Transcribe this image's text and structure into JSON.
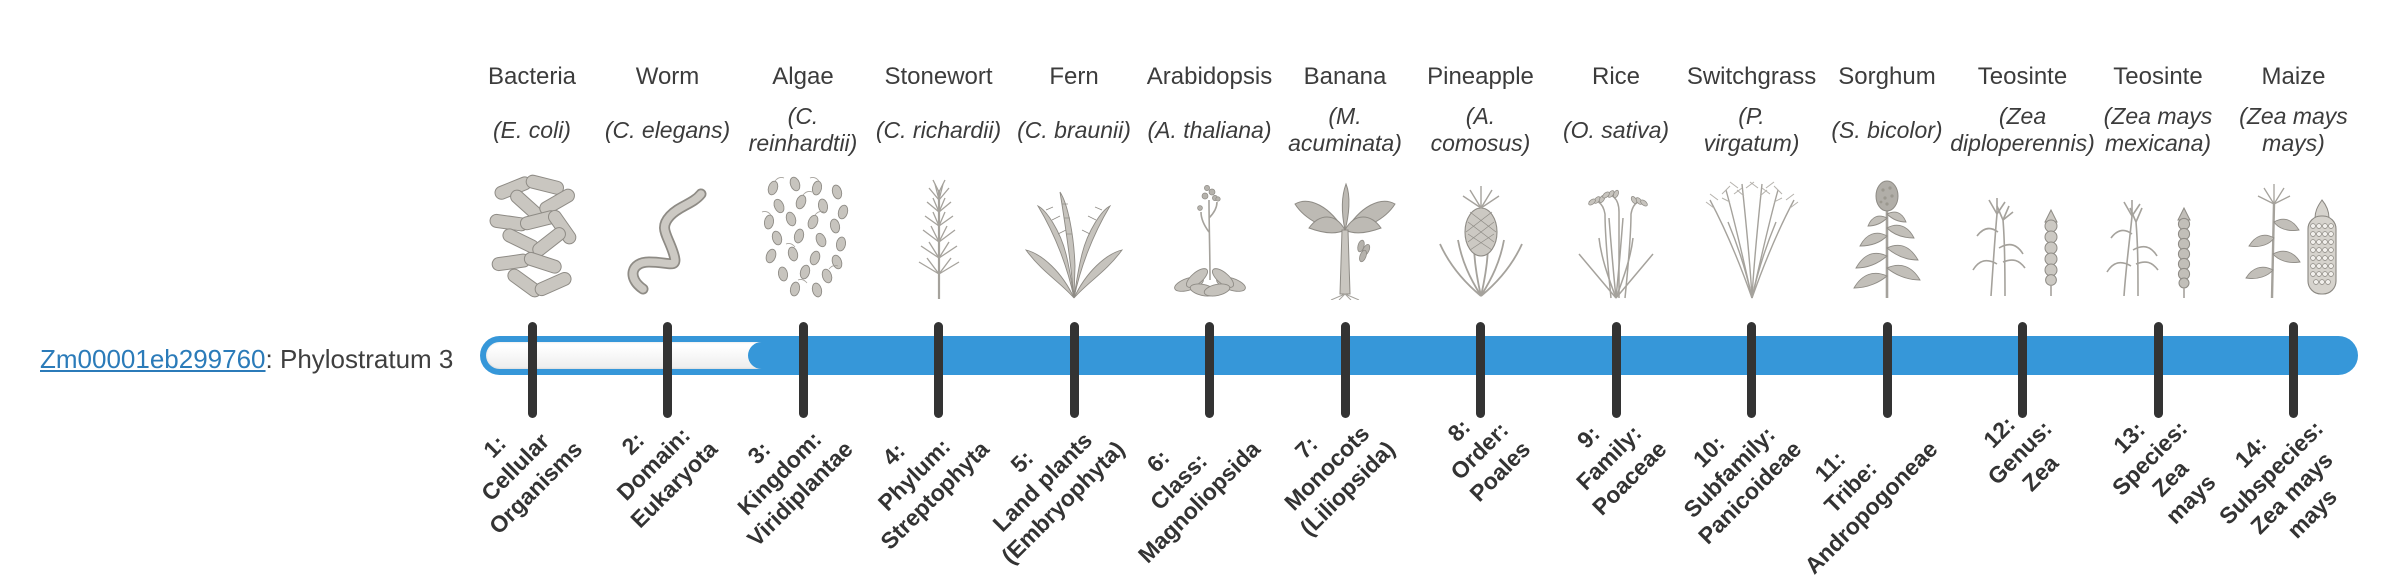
{
  "gene": {
    "id": "Zm00001eb299760",
    "suffix": ": Phylostratum 3",
    "phylostratum": 3
  },
  "colors": {
    "bar_fill": "#3697d9",
    "bar_empty_track": "#f5f5f5",
    "tick": "#333333",
    "text": "#3c3c3c",
    "link": "#2b7bb9",
    "illustration_gray": "#c9c6c0"
  },
  "chart_data": {
    "type": "bar",
    "orientation": "horizontal",
    "title": "Zm00001eb299760: Phylostratum 3",
    "gene_id": "Zm00001eb299760",
    "gene_phylostratum": 3,
    "axis_description": "Phylostrata 1-14 timeline; track empty for strata 1-2, filled blue from stratum 3 (gene origin) through stratum 14",
    "empty_range": [
      1,
      2
    ],
    "filled_range": [
      3,
      14
    ],
    "categories": [
      "1: Cellular Organisms",
      "2: Domain: Eukaryota",
      "3: Kingdom: Viridiplantae",
      "4: Phylum: Streptophyta",
      "5: Land plants (Embryophyta)",
      "6: Class: Magnoliopsida",
      "7: Monocots (Liliopsida)",
      "8: Order: Poales",
      "9: Family: Poaceae",
      "10: Subfamily: Panicoideae",
      "11: Tribe: Andropogoneae",
      "12: Genus: Zea",
      "13: Species: Zea mays",
      "14: Subspecies: Zea mays mays"
    ],
    "species": [
      {
        "common": "Bacteria",
        "scientific": "E. coli"
      },
      {
        "common": "Worm",
        "scientific": "C. elegans"
      },
      {
        "common": "Algae",
        "scientific": "C. reinhardtii"
      },
      {
        "common": "Stonewort",
        "scientific": "C. richardii"
      },
      {
        "common": "Fern",
        "scientific": "C. braunii"
      },
      {
        "common": "Arabidopsis",
        "scientific": "A. thaliana"
      },
      {
        "common": "Banana",
        "scientific": "M. acuminata"
      },
      {
        "common": "Pineapple",
        "scientific": "A. comosus"
      },
      {
        "common": "Rice",
        "scientific": "O. sativa"
      },
      {
        "common": "Switchgrass",
        "scientific": "P. virgatum"
      },
      {
        "common": "Sorghum",
        "scientific": "S. bicolor"
      },
      {
        "common": "Teosinte",
        "scientific": "Zea diploperennis"
      },
      {
        "common": "Teosinte",
        "scientific": "Zea mays mexicana"
      },
      {
        "common": "Maize",
        "scientific": "Zea mays mays"
      }
    ]
  },
  "strata": [
    {
      "num": "1",
      "label": "1:\nCellular\nOrganisms",
      "species": "Bacteria",
      "sci": "(E. coli)",
      "icon": "bacteria"
    },
    {
      "num": "2",
      "label": "2:\nDomain:\nEukaryota",
      "species": "Worm",
      "sci": "(C. elegans)",
      "icon": "worm"
    },
    {
      "num": "3",
      "label": "3:\nKingdom:\nViridiplantae",
      "species": "Algae",
      "sci": "(C.\nreinhardtii)",
      "icon": "algae"
    },
    {
      "num": "4",
      "label": "4:\nPhylum:\nStreptophyta",
      "species": "Stonewort",
      "sci": "(C. richardii)",
      "icon": "stonewort"
    },
    {
      "num": "5",
      "label": "5:\nLand plants\n(Embryophyta)",
      "species": "Fern",
      "sci": "(C. braunii)",
      "icon": "fern"
    },
    {
      "num": "6",
      "label": "6:\nClass:\nMagnoliopsida",
      "species": "Arabidopsis",
      "sci": "(A. thaliana)",
      "icon": "arabidopsis"
    },
    {
      "num": "7",
      "label": "7:\nMonocots\n(Liliopsida)",
      "species": "Banana",
      "sci": "(M.\nacuminata)",
      "icon": "banana"
    },
    {
      "num": "8",
      "label": "8:\nOrder:\nPoales",
      "species": "Pineapple",
      "sci": "(A.\ncomosus)",
      "icon": "pineapple"
    },
    {
      "num": "9",
      "label": "9:\nFamily:\nPoaceae",
      "species": "Rice",
      "sci": "(O. sativa)",
      "icon": "rice"
    },
    {
      "num": "10",
      "label": "10:\nSubfamily:\nPanicoideae",
      "species": "Switchgrass",
      "sci": "(P.\nvirgatum)",
      "icon": "switchgrass"
    },
    {
      "num": "11",
      "label": "11:\nTribe:\nAndropogoneae",
      "species": "Sorghum",
      "sci": "(S. bicolor)",
      "icon": "sorghum"
    },
    {
      "num": "12",
      "label": "12:\nGenus:\nZea",
      "species": "Teosinte",
      "sci": "(Zea\ndiploperennis)",
      "icon": "teosinte-diploperennis"
    },
    {
      "num": "13",
      "label": "13:\nSpecies:\nZea\nmays",
      "species": "Teosinte",
      "sci": "(Zea mays\nmexicana)",
      "icon": "teosinte-mexicana"
    },
    {
      "num": "14",
      "label": "14:\nSubspecies:\nZea mays\nmays",
      "species": "Maize",
      "sci": "(Zea mays\nmays)",
      "icon": "maize"
    }
  ],
  "layout_values": {
    "first_tick_x": 532,
    "tick_spacing": 135.5
  }
}
